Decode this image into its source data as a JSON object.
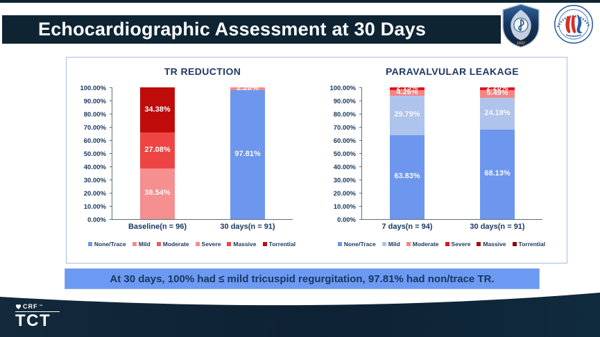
{
  "title_bar": {
    "title": "Echocardiographic Assessment at 30 Days"
  },
  "logos": {
    "shield_logo": "hospital shield emblem",
    "shield_year": "1937",
    "round_logo": "national clinical research center round emblem"
  },
  "colors": {
    "navy": "#0e2433",
    "chart_text": "#17375e",
    "banner_bg": "#6c9af3",
    "panel_border": "#a7bae4",
    "axis": "#5b6d7e"
  },
  "banner": {
    "text": "At 30 days, 100% had ≤ mild tricuspid regurgitation, 97.81% had non/trace TR."
  },
  "footer": {
    "crf": "CRF",
    "tct": "TCT"
  },
  "chart_data": [
    {
      "type": "bar",
      "stacked": true,
      "title": "TR REDUCTION",
      "xlabel": "",
      "ylabel": "",
      "ylim": [
        0,
        100
      ],
      "grid": false,
      "legend_position": "bottom",
      "y_ticks": [
        "0.00%",
        "10.00%",
        "20.00%",
        "30.00%",
        "40.00%",
        "50.00%",
        "60.00%",
        "70.00%",
        "80.00%",
        "90.00%",
        "100.00%"
      ],
      "categories": [
        "Baseline(n = 96)",
        "30 days(n = 91)"
      ],
      "series": [
        {
          "name": "None/Trace",
          "color": "#6d97ee",
          "values": [
            0,
            97.81
          ],
          "labels": [
            "",
            "97.81%"
          ]
        },
        {
          "name": "Mild",
          "color": "#f58a8a",
          "values": [
            0,
            2.2
          ],
          "labels": [
            "",
            "2.20%"
          ]
        },
        {
          "name": "Moderate",
          "color": "#ee5a5a",
          "values": [
            0,
            0
          ],
          "labels": [
            "",
            ""
          ]
        },
        {
          "name": "Severe",
          "color": "#f68f8f",
          "values": [
            38.54,
            0
          ],
          "labels": [
            "38.54%",
            ""
          ]
        },
        {
          "name": "Massive",
          "color": "#ef4444",
          "values": [
            27.08,
            0
          ],
          "labels": [
            "27.08%",
            ""
          ]
        },
        {
          "name": "Torrential",
          "color": "#c00b0b",
          "values": [
            34.38,
            0
          ],
          "labels": [
            "34.38%",
            ""
          ]
        }
      ]
    },
    {
      "type": "bar",
      "stacked": true,
      "title": "PARAVALVULAR LEAKAGE",
      "xlabel": "",
      "ylabel": "",
      "ylim": [
        0,
        100
      ],
      "grid": false,
      "legend_position": "bottom",
      "y_ticks": [
        "0.00%",
        "10.00%",
        "20.00%",
        "30.00%",
        "40.00%",
        "50.00%",
        "60.00%",
        "70.00%",
        "80.00%",
        "90.00%",
        "100.00%"
      ],
      "categories": [
        "7 days(n = 94)",
        "30 days(n = 91)"
      ],
      "series": [
        {
          "name": "None/Trace",
          "color": "#6d97ee",
          "values": [
            63.83,
            68.13
          ],
          "labels": [
            "63.83%",
            "68.13%"
          ]
        },
        {
          "name": "Mild",
          "color": "#afc4ec",
          "values": [
            29.79,
            24.18
          ],
          "labels": [
            "29.79%",
            "24.18%"
          ]
        },
        {
          "name": "Moderate",
          "color": "#f58585",
          "values": [
            4.26,
            5.49
          ],
          "labels": [
            "4.26%",
            "5.49%"
          ]
        },
        {
          "name": "Severe",
          "color": "#e01418",
          "values": [
            2.13,
            2.2
          ],
          "labels": [
            "2.13%",
            "2.20%"
          ]
        },
        {
          "name": "Massive",
          "color": "#a61216",
          "values": [
            0,
            0
          ],
          "labels": [
            "",
            ""
          ]
        },
        {
          "name": "Torrential",
          "color": "#7e0d10",
          "values": [
            0,
            0
          ],
          "labels": [
            "",
            ""
          ]
        }
      ]
    }
  ]
}
